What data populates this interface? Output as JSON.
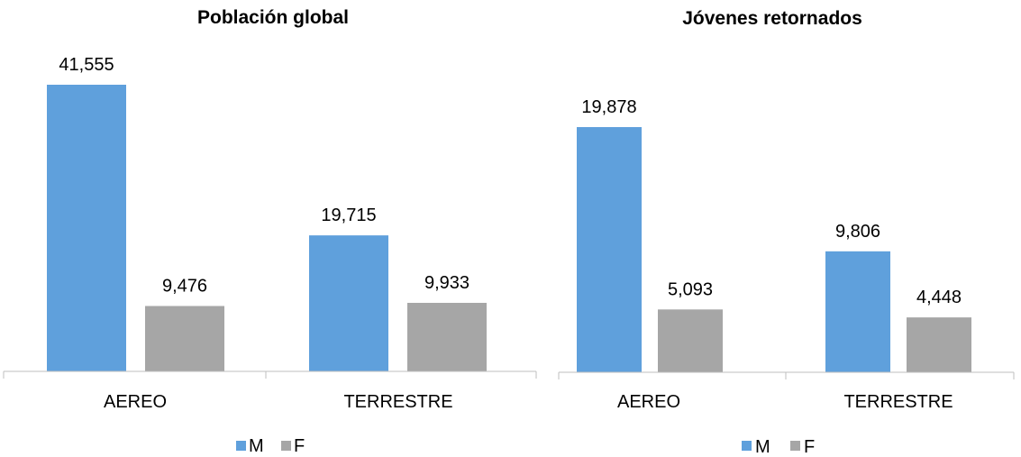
{
  "colors": {
    "M": "#5fa0dc",
    "F": "#a6a6a6"
  },
  "chart_data": [
    {
      "type": "bar",
      "title": "Población global",
      "categories": [
        "AEREO",
        "TERRESTRE"
      ],
      "series": [
        {
          "name": "M",
          "values": [
            41555,
            19715
          ],
          "labels": [
            "41,555",
            "19,715"
          ]
        },
        {
          "name": "F",
          "values": [
            9476,
            9933
          ],
          "labels": [
            "9,476",
            "9,933"
          ]
        }
      ],
      "legend": "bottom"
    },
    {
      "type": "bar",
      "title": "Jóvenes retornados",
      "categories": [
        "AEREO",
        "TERRESTRE"
      ],
      "series": [
        {
          "name": "M",
          "values": [
            19878,
            9806
          ],
          "labels": [
            "19,878",
            "9,806"
          ]
        },
        {
          "name": "F",
          "values": [
            5093,
            4448
          ],
          "labels": [
            "5,093",
            "4,448"
          ]
        }
      ],
      "legend": "bottom"
    }
  ]
}
